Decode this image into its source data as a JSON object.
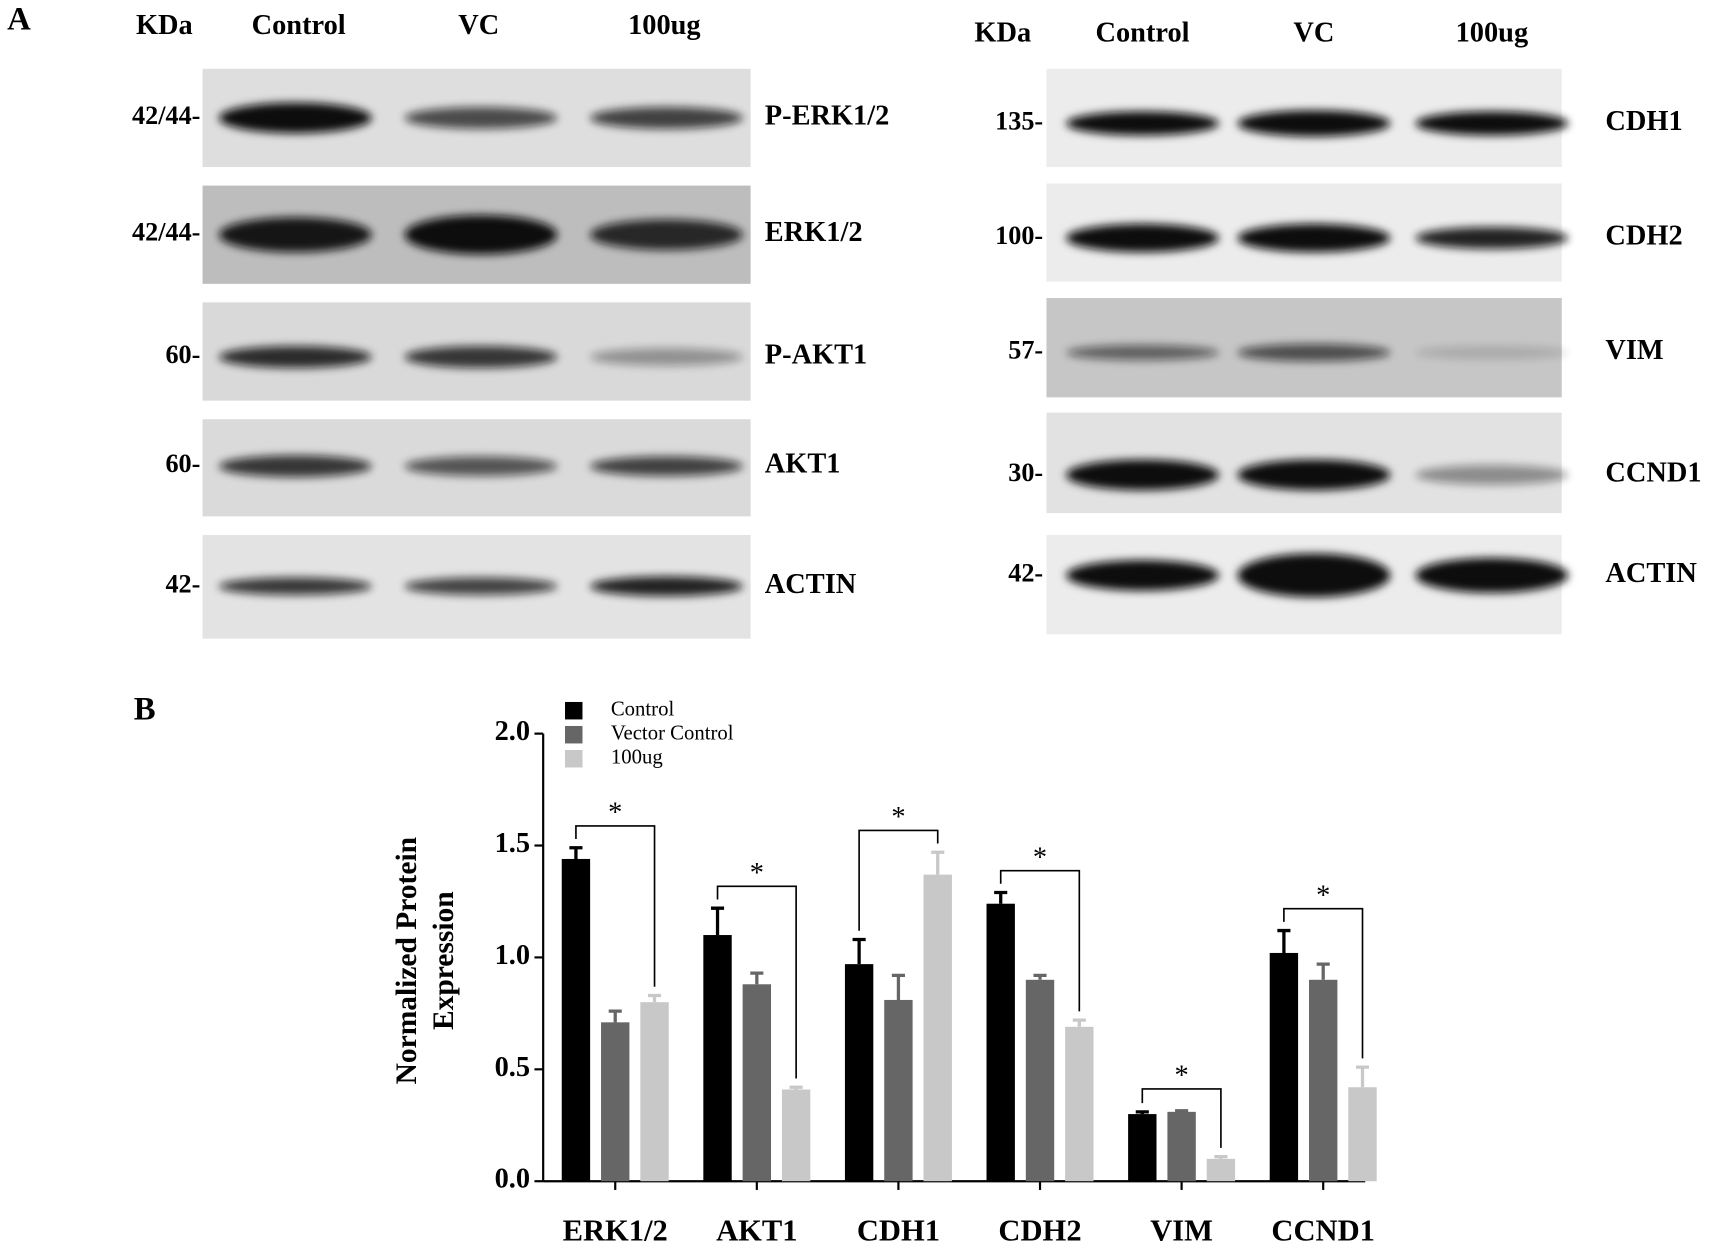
{
  "panel_a": {
    "label": "A",
    "blots": [
      {
        "header": [
          "KDa",
          "Control",
          "VC",
          "100ug"
        ],
        "rows": [
          {
            "marker": "42/44-",
            "protein": "P-ERK1/2"
          },
          {
            "marker": "42/44-",
            "protein": "ERK1/2"
          },
          {
            "marker": "60-",
            "protein": "P-AKT1"
          },
          {
            "marker": "60-",
            "protein": "AKT1"
          },
          {
            "marker": "42-",
            "protein": "ACTIN"
          }
        ]
      },
      {
        "header": [
          "KDa",
          "Control",
          "VC",
          "100ug"
        ],
        "rows": [
          {
            "marker": "135-",
            "protein": "CDH1"
          },
          {
            "marker": "100-",
            "protein": "CDH2"
          },
          {
            "marker": "57-",
            "protein": "VIM"
          },
          {
            "marker": "30-",
            "protein": "CCND1"
          },
          {
            "marker": "42-",
            "protein": "ACTIN"
          }
        ]
      }
    ]
  },
  "panel_b": {
    "label": "B"
  },
  "chart_data": {
    "type": "bar",
    "y_label": [
      "Normalized Protein",
      "Expression"
    ],
    "categories": [
      "ERK1/2",
      "AKT1",
      "CDH1",
      "CDH2",
      "VIM",
      "CCND1"
    ],
    "series": [
      {
        "name": "Control",
        "color": "#000000",
        "values": [
          1.44,
          1.1,
          0.97,
          1.24,
          0.3,
          1.02
        ],
        "errors": [
          0.05,
          0.12,
          0.11,
          0.05,
          0.01,
          0.1
        ]
      },
      {
        "name": "Vector Control",
        "color": "#666666",
        "values": [
          0.71,
          0.88,
          0.81,
          0.9,
          0.31,
          0.9
        ],
        "errors": [
          0.05,
          0.05,
          0.11,
          0.02,
          0.005,
          0.07
        ]
      },
      {
        "name": "100ug",
        "color": "#c8c8c8",
        "values": [
          0.8,
          0.41,
          1.37,
          0.69,
          0.1,
          0.42
        ],
        "errors": [
          0.03,
          0.01,
          0.1,
          0.03,
          0.01,
          0.09
        ]
      }
    ],
    "significance": [
      "*",
      "*",
      "*",
      "*",
      "*",
      "*"
    ],
    "ylim": [
      0,
      2
    ],
    "yticks": [
      {
        "value": 0,
        "label": "0.0"
      },
      0.5,
      {
        "value": 1,
        "label": "1.0"
      },
      1.5,
      {
        "value": 2,
        "label": "2.0"
      }
    ],
    "legend": "top-left"
  }
}
